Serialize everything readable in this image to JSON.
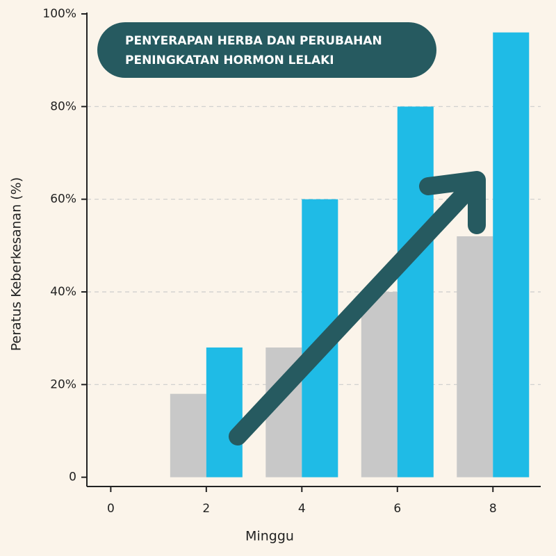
{
  "chart_data": {
    "type": "bar",
    "title": [
      "PENYERAPAN HERBA DAN PERUBAHAN",
      "PENINGKATAN HORMON LELAKI"
    ],
    "x_label": "Minggu",
    "y_label": "Peratus Keberkesanan (%)",
    "x": [
      0,
      2,
      4,
      6,
      8
    ],
    "xlim": [
      -0.5,
      9
    ],
    "xticks": [
      0,
      2,
      4,
      6,
      8
    ],
    "series": [
      {
        "color": "#c8c8c8",
        "values": [
          0,
          18,
          28,
          40,
          52
        ]
      },
      {
        "color": "#1fbbe6",
        "values": [
          0,
          28,
          60,
          80,
          96
        ]
      }
    ],
    "ylim": [
      -2,
      100
    ],
    "yticks": [
      0,
      {
        "value": 20,
        "label": "20%"
      },
      {
        "value": 40,
        "label": "40%"
      },
      {
        "value": 60,
        "label": "60%"
      },
      {
        "value": 80,
        "label": "80%"
      },
      {
        "value": 100,
        "label": "100%"
      }
    ],
    "grid": true,
    "title_color": "#265a60"
  }
}
